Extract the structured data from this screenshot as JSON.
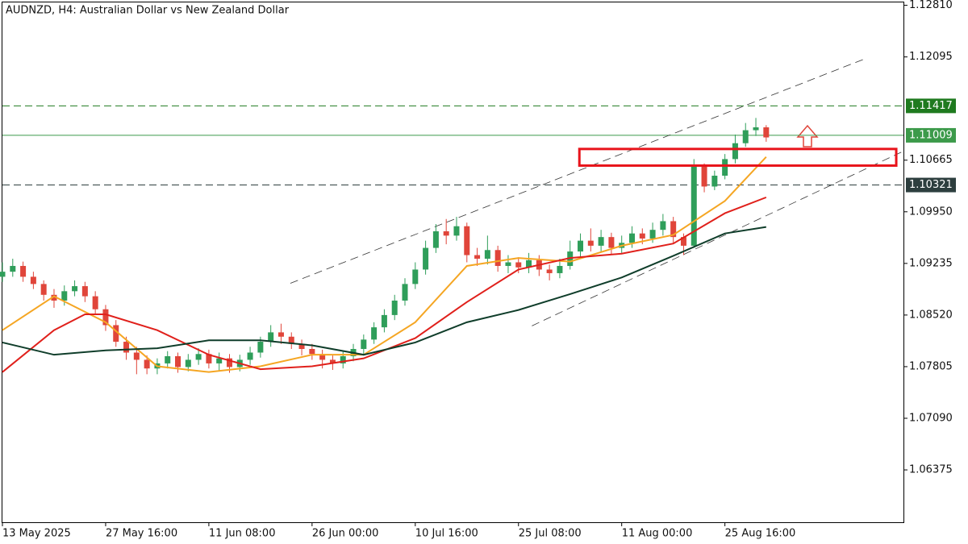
{
  "chart_data": {
    "type": "candlestick",
    "title": "AUDNZD, H4:  Australian Dollar vs New Zealand Dollar",
    "up_color": "#2f9e5a",
    "down_color": "#e0453a",
    "xlim": [
      0,
      87.3
    ],
    "xticks": [
      {
        "value": 0,
        "label": "13 May 2025"
      },
      {
        "value": 10,
        "label": "27 May 16:00"
      },
      {
        "value": 20,
        "label": "11 Jun 08:00"
      },
      {
        "value": 30,
        "label": "26 Jun 00:00"
      },
      {
        "value": 40,
        "label": "10 Jul 16:00"
      },
      {
        "value": 50,
        "label": "25 Jul 08:00"
      },
      {
        "value": 60,
        "label": "11 Aug 00:00"
      },
      {
        "value": 70,
        "label": "25 Aug 16:00"
      }
    ],
    "ylim": [
      1.0565,
      1.1285
    ],
    "yticks": [
      {
        "value": 1.1281,
        "label": "1.12810"
      },
      1.12095,
      1.10665,
      {
        "value": 1.0995,
        "label": "1.09950"
      },
      1.09235,
      {
        "value": 1.0852,
        "label": "1.08520"
      },
      1.07805,
      {
        "value": 1.0709,
        "label": "1.07090"
      },
      1.06375
    ],
    "candles": {
      "open": [
        1.0905,
        1.0912,
        1.092,
        1.0905,
        1.0895,
        1.088,
        1.0872,
        1.0885,
        1.0892,
        1.0878,
        1.086,
        1.0838,
        1.0815,
        1.08,
        1.079,
        1.0778,
        1.0785,
        1.0795,
        1.078,
        1.079,
        1.0798,
        1.0785,
        1.0792,
        1.078,
        1.079,
        1.08,
        1.0815,
        1.0828,
        1.0822,
        1.0812,
        1.0805,
        1.0798,
        1.079,
        1.0785,
        1.0795,
        1.0805,
        1.0818,
        1.0835,
        1.0852,
        1.0872,
        1.0895,
        1.0915,
        1.0945,
        1.0968,
        1.0962,
        1.0975,
        1.0935,
        1.093,
        1.0942,
        1.092,
        1.0925,
        1.0918,
        1.0928,
        1.0915,
        1.091,
        1.092,
        1.094,
        1.0955,
        1.0948,
        1.096,
        1.0945,
        1.0952,
        1.0965,
        1.0958,
        1.097,
        1.0982,
        1.096,
        1.0948,
        1.1058,
        1.103,
        1.1045,
        1.1068,
        1.109,
        1.1108,
        1.1112
      ],
      "high": [
        1.0925,
        1.093,
        1.0926,
        1.0912,
        1.09,
        1.0888,
        1.0893,
        1.09,
        1.0898,
        1.0885,
        1.0866,
        1.0845,
        1.0822,
        1.0808,
        1.0796,
        1.0792,
        1.0802,
        1.08,
        1.0798,
        1.0806,
        1.0804,
        1.08,
        1.0798,
        1.0797,
        1.0808,
        1.0822,
        1.0838,
        1.084,
        1.0828,
        1.0818,
        1.0812,
        1.0804,
        1.0796,
        1.0802,
        1.0812,
        1.0825,
        1.0842,
        1.086,
        1.088,
        1.0903,
        1.0925,
        1.0955,
        1.0978,
        1.0985,
        1.0988,
        1.098,
        1.0945,
        1.0962,
        1.0948,
        1.0935,
        1.0932,
        1.0938,
        1.0935,
        1.0922,
        1.093,
        1.0955,
        1.0965,
        1.0972,
        1.097,
        1.0966,
        1.0962,
        1.0975,
        1.0972,
        1.098,
        1.0992,
        1.0988,
        1.0965,
        1.1068,
        1.1062,
        1.1052,
        1.1075,
        1.1102,
        1.1118,
        1.1125,
        1.1115
      ],
      "low": [
        1.0898,
        1.0905,
        1.0898,
        1.0888,
        1.0872,
        1.0862,
        1.0865,
        1.0878,
        1.087,
        1.0852,
        1.083,
        1.0808,
        1.079,
        1.077,
        1.077,
        1.077,
        1.0778,
        1.0772,
        1.0774,
        1.0783,
        1.0778,
        1.0775,
        1.0772,
        1.0774,
        1.0783,
        1.0793,
        1.0808,
        1.0812,
        1.0805,
        1.0796,
        1.079,
        1.0778,
        1.0776,
        1.0778,
        1.0788,
        1.0798,
        1.0812,
        1.0828,
        1.0845,
        1.0865,
        1.0888,
        1.0908,
        1.0938,
        1.095,
        1.0955,
        1.0925,
        1.092,
        1.0922,
        1.0912,
        1.091,
        1.091,
        1.091,
        1.0906,
        1.09,
        1.0903,
        1.0915,
        1.0932,
        1.094,
        1.094,
        1.0936,
        1.0938,
        1.0945,
        1.095,
        1.0952,
        1.0962,
        1.0952,
        1.0935,
        1.0945,
        1.1022,
        1.1025,
        1.104,
        1.1062,
        1.1085,
        1.11,
        1.1092
      ],
      "close": [
        1.0912,
        1.092,
        1.0905,
        1.0895,
        1.088,
        1.0872,
        1.0885,
        1.0892,
        1.0878,
        1.086,
        1.0838,
        1.0815,
        1.08,
        1.079,
        1.0778,
        1.0785,
        1.0795,
        1.078,
        1.079,
        1.0798,
        1.0785,
        1.0792,
        1.078,
        1.079,
        1.08,
        1.0815,
        1.0828,
        1.0822,
        1.0812,
        1.0805,
        1.0798,
        1.079,
        1.0785,
        1.0795,
        1.0805,
        1.0818,
        1.0835,
        1.0852,
        1.0872,
        1.0895,
        1.0915,
        1.0945,
        1.0968,
        1.0962,
        1.0975,
        1.0935,
        1.093,
        1.0942,
        1.092,
        1.0925,
        1.0918,
        1.0928,
        1.0915,
        1.091,
        1.092,
        1.094,
        1.0955,
        1.0948,
        1.096,
        1.0945,
        1.0952,
        1.0965,
        1.0958,
        1.097,
        1.0982,
        1.096,
        1.0948,
        1.1058,
        1.103,
        1.1045,
        1.1068,
        1.109,
        1.1108,
        1.1112,
        1.1098
      ]
    },
    "series": [
      {
        "color": "#f5a623",
        "x": [
          0,
          5,
          10,
          15,
          20,
          25,
          30,
          35,
          40,
          45,
          50,
          55,
          60,
          65,
          70,
          74
        ],
        "values": [
          1.0831,
          1.0878,
          1.0842,
          1.0781,
          1.0773,
          1.0781,
          1.0797,
          1.0797,
          1.0842,
          1.092,
          1.0931,
          1.0926,
          1.0948,
          1.0963,
          1.101,
          1.1071
        ]
      },
      {
        "color": "#e0201b",
        "x": [
          0,
          5,
          8,
          10,
          15,
          20,
          25,
          30,
          35,
          40,
          45,
          50,
          55,
          60,
          65,
          70,
          74
        ],
        "values": [
          1.0773,
          1.0831,
          1.0853,
          1.0853,
          1.0831,
          1.0797,
          1.0777,
          1.0781,
          1.0792,
          1.082,
          1.087,
          1.0915,
          1.0931,
          1.0937,
          1.0951,
          1.0993,
          1.1015
        ]
      },
      {
        "color": "#0f3d2a",
        "x": [
          0,
          5,
          10,
          15,
          20,
          25,
          30,
          35,
          40,
          45,
          50,
          55,
          60,
          65,
          70,
          74
        ],
        "values": [
          1.0814,
          1.0797,
          1.0803,
          1.0806,
          1.0817,
          1.0817,
          1.081,
          1.0797,
          1.0814,
          1.0842,
          1.0859,
          1.0881,
          1.0904,
          1.0934,
          1.0965,
          1.0974
        ]
      }
    ],
    "levels": [
      {
        "value": 1.11417,
        "color": "#1f7a1f",
        "dashed": true
      },
      {
        "value": 1.11009,
        "color": "#3c9a4a",
        "dashed": false
      },
      {
        "value": 1.10321,
        "color": "#2d3e3e",
        "dashed": true
      }
    ],
    "trendlines": [
      {
        "x": [
          27.9,
          83.4
        ],
        "values": [
          1.0896,
          1.1206
        ]
      },
      {
        "x": [
          51.3,
          87.3
        ],
        "values": [
          1.0837,
          1.1079
        ]
      }
    ],
    "zone": {
      "x": [
        55.9,
        86.6
      ],
      "values": [
        1.1082,
        1.1059
      ],
      "color": "#e8141b"
    }
  }
}
